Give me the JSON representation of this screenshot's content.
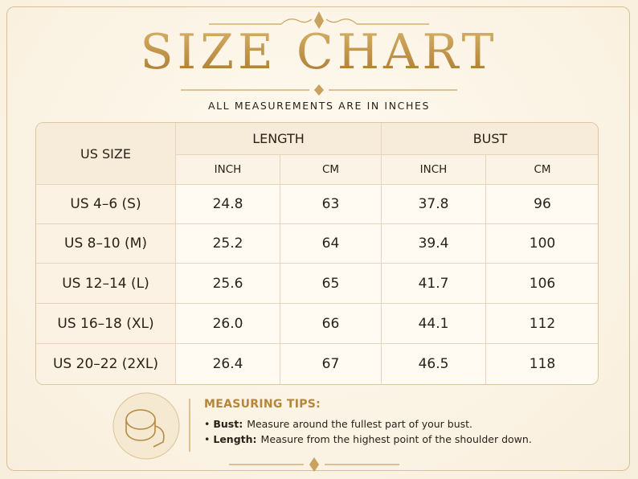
{
  "header": {
    "title": "SIZE CHART",
    "subtitle": "ALL MEASUREMENTS ARE IN INCHES"
  },
  "table": {
    "size_header": "US SIZE",
    "groups": [
      "LENGTH",
      "BUST"
    ],
    "units": [
      "INCH",
      "CM",
      "INCH",
      "CM"
    ],
    "rows": [
      [
        "US 4–6 (S)",
        "24.8",
        "63",
        "37.8",
        "96"
      ],
      [
        "US 8–10 (M)",
        "25.2",
        "64",
        "39.4",
        "100"
      ],
      [
        "US 12–14 (L)",
        "25.6",
        "65",
        "41.7",
        "106"
      ],
      [
        "US 16–18 (XL)",
        "26.0",
        "66",
        "44.1",
        "112"
      ],
      [
        "US 20–22 (2XL)",
        "26.4",
        "67",
        "46.5",
        "118"
      ]
    ]
  },
  "tips": {
    "title": "MEASURING TIPS:",
    "items": [
      {
        "label": "Bust:",
        "text": "Measure around the fullest part of your bust."
      },
      {
        "label": "Length:",
        "text": "Measure from the highest point of the shoulder down."
      }
    ]
  }
}
